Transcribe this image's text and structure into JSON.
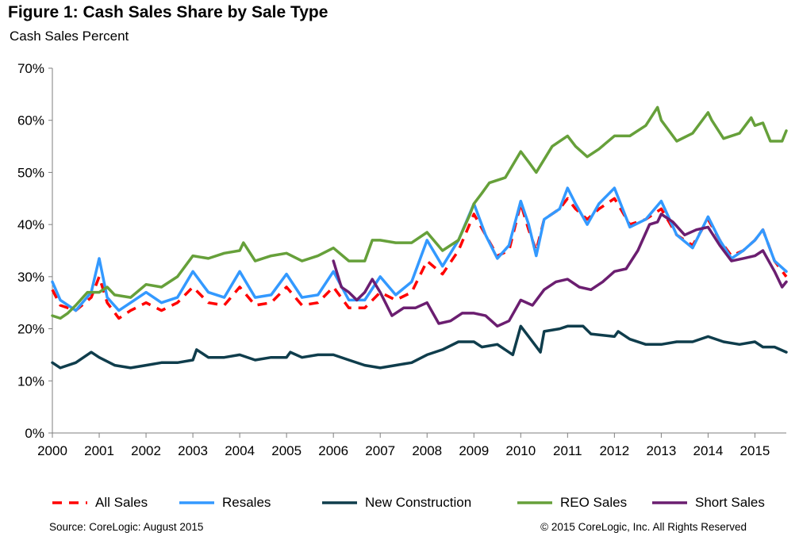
{
  "header": {
    "title": "Figure 1: Cash Sales Share by Sale Type",
    "subtitle": "Cash Sales Percent"
  },
  "footer": {
    "source": "Source: CoreLogic: August 2015",
    "copyright": "© 2015 CoreLogic, Inc. All Rights Reserved"
  },
  "chart_data": {
    "type": "line",
    "title": "Figure 1: Cash Sales Share by Sale Type",
    "ylabel": "Cash Sales Percent",
    "xlabel": "",
    "xlim": [
      2000,
      2015.67
    ],
    "ylim": [
      0,
      70
    ],
    "x_ticks": [
      "2000",
      "2001",
      "2002",
      "2003",
      "2004",
      "2005",
      "2006",
      "2007",
      "2008",
      "2009",
      "2010",
      "2011",
      "2012",
      "2013",
      "2014",
      "2015"
    ],
    "y_ticks": [
      "0%",
      "10%",
      "20%",
      "30%",
      "40%",
      "50%",
      "60%",
      "70%"
    ],
    "grid": false,
    "legend_position": "bottom",
    "series": [
      {
        "name": "All Sales",
        "color": "#ff0000",
        "dash": true,
        "points": [
          [
            2000,
            27.5
          ],
          [
            2000.17,
            24.5
          ],
          [
            2000.5,
            23.5
          ],
          [
            2000.83,
            26
          ],
          [
            2001,
            30
          ],
          [
            2001.17,
            25
          ],
          [
            2001.42,
            22
          ],
          [
            2001.67,
            23.5
          ],
          [
            2002,
            25
          ],
          [
            2002.33,
            23.5
          ],
          [
            2002.67,
            25
          ],
          [
            2003,
            28
          ],
          [
            2003.33,
            25
          ],
          [
            2003.67,
            24.5
          ],
          [
            2004,
            28
          ],
          [
            2004.33,
            24.5
          ],
          [
            2004.67,
            25
          ],
          [
            2005,
            28
          ],
          [
            2005.33,
            24.5
          ],
          [
            2005.67,
            25
          ],
          [
            2006,
            28
          ],
          [
            2006.33,
            24
          ],
          [
            2006.67,
            24
          ],
          [
            2007,
            27
          ],
          [
            2007.33,
            25.5
          ],
          [
            2007.67,
            27
          ],
          [
            2008,
            33
          ],
          [
            2008.33,
            30.5
          ],
          [
            2008.67,
            35
          ],
          [
            2009,
            42
          ],
          [
            2009.25,
            38
          ],
          [
            2009.5,
            34
          ],
          [
            2009.75,
            35
          ],
          [
            2010,
            44
          ],
          [
            2010.17,
            39
          ],
          [
            2010.33,
            35
          ],
          [
            2010.5,
            41
          ],
          [
            2010.83,
            43
          ],
          [
            2011,
            45
          ],
          [
            2011.17,
            43
          ],
          [
            2011.42,
            41
          ],
          [
            2011.67,
            43
          ],
          [
            2012,
            45
          ],
          [
            2012.33,
            40
          ],
          [
            2012.67,
            41
          ],
          [
            2013,
            43
          ],
          [
            2013.33,
            38
          ],
          [
            2013.67,
            36
          ],
          [
            2014,
            41
          ],
          [
            2014.25,
            37
          ],
          [
            2014.5,
            34
          ],
          [
            2014.75,
            35
          ],
          [
            2015,
            37
          ],
          [
            2015.17,
            39
          ],
          [
            2015.42,
            33
          ],
          [
            2015.67,
            30
          ]
        ]
      },
      {
        "name": "Resales",
        "color": "#3399ff",
        "dash": false,
        "points": [
          [
            2000,
            29
          ],
          [
            2000.17,
            25.5
          ],
          [
            2000.5,
            23.5
          ],
          [
            2000.83,
            27
          ],
          [
            2001,
            33.5
          ],
          [
            2001.17,
            26
          ],
          [
            2001.42,
            23.5
          ],
          [
            2001.67,
            25
          ],
          [
            2002,
            27
          ],
          [
            2002.33,
            25
          ],
          [
            2002.67,
            26
          ],
          [
            2003,
            31
          ],
          [
            2003.33,
            27
          ],
          [
            2003.67,
            26
          ],
          [
            2004,
            31
          ],
          [
            2004.33,
            26
          ],
          [
            2004.67,
            26.5
          ],
          [
            2005,
            30.5
          ],
          [
            2005.33,
            26
          ],
          [
            2005.67,
            26.5
          ],
          [
            2006,
            31
          ],
          [
            2006.33,
            25.5
          ],
          [
            2006.67,
            25.5
          ],
          [
            2007,
            30
          ],
          [
            2007.33,
            26.5
          ],
          [
            2007.67,
            29
          ],
          [
            2008,
            37
          ],
          [
            2008.33,
            32
          ],
          [
            2008.67,
            37
          ],
          [
            2009,
            44
          ],
          [
            2009.25,
            38
          ],
          [
            2009.5,
            33.5
          ],
          [
            2009.75,
            36
          ],
          [
            2010,
            44.5
          ],
          [
            2010.17,
            40
          ],
          [
            2010.33,
            34
          ],
          [
            2010.5,
            41
          ],
          [
            2010.83,
            43
          ],
          [
            2011,
            47
          ],
          [
            2011.17,
            44
          ],
          [
            2011.42,
            40
          ],
          [
            2011.67,
            44
          ],
          [
            2012,
            47
          ],
          [
            2012.33,
            39.5
          ],
          [
            2012.67,
            41
          ],
          [
            2013,
            44.5
          ],
          [
            2013.33,
            38
          ],
          [
            2013.67,
            35.5
          ],
          [
            2014,
            41.5
          ],
          [
            2014.25,
            37
          ],
          [
            2014.5,
            33.5
          ],
          [
            2014.75,
            35
          ],
          [
            2015,
            37
          ],
          [
            2015.17,
            39
          ],
          [
            2015.42,
            33
          ],
          [
            2015.67,
            31
          ]
        ]
      },
      {
        "name": "New Construction",
        "color": "#0f3d4c",
        "dash": false,
        "points": [
          [
            2000,
            13.5
          ],
          [
            2000.17,
            12.5
          ],
          [
            2000.5,
            13.5
          ],
          [
            2000.83,
            15.5
          ],
          [
            2001,
            14.5
          ],
          [
            2001.33,
            13
          ],
          [
            2001.67,
            12.5
          ],
          [
            2002,
            13
          ],
          [
            2002.33,
            13.5
          ],
          [
            2002.67,
            13.5
          ],
          [
            2003,
            14
          ],
          [
            2003.08,
            16
          ],
          [
            2003.33,
            14.5
          ],
          [
            2003.67,
            14.5
          ],
          [
            2004,
            15
          ],
          [
            2004.33,
            14
          ],
          [
            2004.67,
            14.5
          ],
          [
            2005,
            14.5
          ],
          [
            2005.08,
            15.5
          ],
          [
            2005.33,
            14.5
          ],
          [
            2005.67,
            15
          ],
          [
            2006,
            15
          ],
          [
            2006.33,
            14
          ],
          [
            2006.67,
            13
          ],
          [
            2007,
            12.5
          ],
          [
            2007.33,
            13
          ],
          [
            2007.67,
            13.5
          ],
          [
            2008,
            15
          ],
          [
            2008.33,
            16
          ],
          [
            2008.67,
            17.5
          ],
          [
            2009,
            17.5
          ],
          [
            2009.17,
            16.5
          ],
          [
            2009.5,
            17
          ],
          [
            2009.83,
            15
          ],
          [
            2010,
            20.5
          ],
          [
            2010.17,
            18.5
          ],
          [
            2010.42,
            15.5
          ],
          [
            2010.5,
            19.5
          ],
          [
            2010.83,
            20
          ],
          [
            2011,
            20.5
          ],
          [
            2011.33,
            20.5
          ],
          [
            2011.5,
            19
          ],
          [
            2012,
            18.5
          ],
          [
            2012.08,
            19.5
          ],
          [
            2012.33,
            18
          ],
          [
            2012.67,
            17
          ],
          [
            2013,
            17
          ],
          [
            2013.33,
            17.5
          ],
          [
            2013.67,
            17.5
          ],
          [
            2014,
            18.5
          ],
          [
            2014.33,
            17.5
          ],
          [
            2014.67,
            17
          ],
          [
            2015,
            17.5
          ],
          [
            2015.17,
            16.5
          ],
          [
            2015.42,
            16.5
          ],
          [
            2015.67,
            15.5
          ]
        ]
      },
      {
        "name": "REO Sales",
        "color": "#66a03a",
        "dash": false,
        "points": [
          [
            2000,
            22.5
          ],
          [
            2000.17,
            22
          ],
          [
            2000.33,
            23
          ],
          [
            2000.5,
            24.5
          ],
          [
            2000.75,
            27
          ],
          [
            2001,
            27
          ],
          [
            2001.17,
            28
          ],
          [
            2001.33,
            26.5
          ],
          [
            2001.67,
            26
          ],
          [
            2002,
            28.5
          ],
          [
            2002.33,
            28
          ],
          [
            2002.67,
            30
          ],
          [
            2003,
            34
          ],
          [
            2003.33,
            33.5
          ],
          [
            2003.67,
            34.5
          ],
          [
            2004,
            35
          ],
          [
            2004.08,
            36.5
          ],
          [
            2004.33,
            33
          ],
          [
            2004.67,
            34
          ],
          [
            2005,
            34.5
          ],
          [
            2005.33,
            33
          ],
          [
            2005.67,
            34
          ],
          [
            2006,
            35.5
          ],
          [
            2006.33,
            33
          ],
          [
            2006.67,
            33
          ],
          [
            2006.83,
            37
          ],
          [
            2007,
            37
          ],
          [
            2007.33,
            36.5
          ],
          [
            2007.67,
            36.5
          ],
          [
            2008,
            38.5
          ],
          [
            2008.33,
            35
          ],
          [
            2008.67,
            37
          ],
          [
            2008.92,
            42
          ],
          [
            2009,
            44
          ],
          [
            2009.17,
            46
          ],
          [
            2009.33,
            48
          ],
          [
            2009.67,
            49
          ],
          [
            2010,
            54
          ],
          [
            2010.17,
            52
          ],
          [
            2010.33,
            50
          ],
          [
            2010.67,
            55
          ],
          [
            2011,
            57
          ],
          [
            2011.17,
            55
          ],
          [
            2011.42,
            53
          ],
          [
            2011.67,
            54.5
          ],
          [
            2012,
            57
          ],
          [
            2012.33,
            57
          ],
          [
            2012.67,
            59
          ],
          [
            2012.92,
            62.5
          ],
          [
            2013,
            60
          ],
          [
            2013.33,
            56
          ],
          [
            2013.67,
            57.5
          ],
          [
            2014,
            61.5
          ],
          [
            2014.08,
            60
          ],
          [
            2014.33,
            56.5
          ],
          [
            2014.67,
            57.5
          ],
          [
            2014.92,
            60.5
          ],
          [
            2015,
            59
          ],
          [
            2015.17,
            59.5
          ],
          [
            2015.33,
            56
          ],
          [
            2015.58,
            56
          ],
          [
            2015.67,
            58
          ]
        ]
      },
      {
        "name": "Short Sales",
        "color": "#6b1e70",
        "dash": false,
        "points": [
          [
            2006,
            33
          ],
          [
            2006.17,
            28
          ],
          [
            2006.33,
            27
          ],
          [
            2006.5,
            25.5
          ],
          [
            2006.67,
            27
          ],
          [
            2006.83,
            29.5
          ],
          [
            2007,
            27
          ],
          [
            2007.25,
            22.5
          ],
          [
            2007.5,
            24
          ],
          [
            2007.75,
            24
          ],
          [
            2008,
            25
          ],
          [
            2008.25,
            21
          ],
          [
            2008.5,
            21.5
          ],
          [
            2008.75,
            23
          ],
          [
            2009,
            23
          ],
          [
            2009.25,
            22.5
          ],
          [
            2009.5,
            20.5
          ],
          [
            2009.75,
            21.5
          ],
          [
            2010,
            25.5
          ],
          [
            2010.25,
            24.5
          ],
          [
            2010.5,
            27.5
          ],
          [
            2010.75,
            29
          ],
          [
            2011,
            29.5
          ],
          [
            2011.25,
            28
          ],
          [
            2011.5,
            27.5
          ],
          [
            2011.75,
            29
          ],
          [
            2012,
            31
          ],
          [
            2012.25,
            31.5
          ],
          [
            2012.5,
            35
          ],
          [
            2012.75,
            40
          ],
          [
            2012.92,
            40.5
          ],
          [
            2013,
            42
          ],
          [
            2013.25,
            40.5
          ],
          [
            2013.5,
            38
          ],
          [
            2013.75,
            39
          ],
          [
            2014,
            39.5
          ],
          [
            2014.25,
            36
          ],
          [
            2014.5,
            33
          ],
          [
            2014.75,
            33.5
          ],
          [
            2015,
            34
          ],
          [
            2015.17,
            35
          ],
          [
            2015.42,
            31
          ],
          [
            2015.58,
            28
          ],
          [
            2015.67,
            29
          ]
        ]
      }
    ]
  }
}
